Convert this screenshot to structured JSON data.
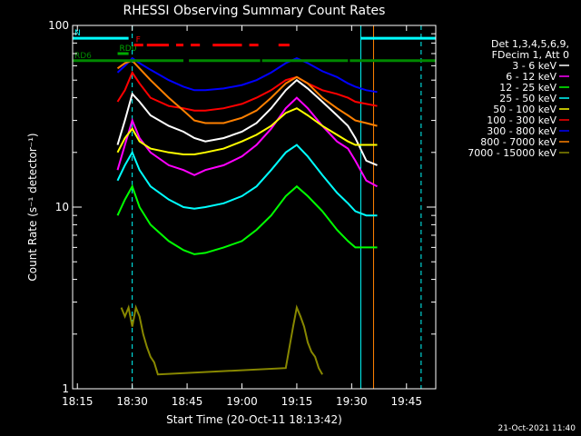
{
  "chart_data": {
    "type": "line",
    "title": "RHESSI Observing Summary Count Rates",
    "xlabel": "Start Time (20-Oct-11 18:13:42)",
    "ylabel": "Count Rate (s⁻¹ detector⁻¹)",
    "y_scale": "log",
    "xlim": [
      "18:13:42",
      "19:53:00"
    ],
    "ylim": [
      1,
      100
    ],
    "x_ticks": [
      "18:15",
      "18:30",
      "18:45",
      "19:00",
      "19:15",
      "19:30",
      "19:45"
    ],
    "y_ticks": [
      "1",
      "10",
      "100"
    ],
    "legend_header": [
      "Det 1,3,4,5,6,9,",
      "FDecim 1, Att 0"
    ],
    "legend_position": "right",
    "series": [
      {
        "name": "3 - 6 keV",
        "color": "#ffffff",
        "x": [
          "18:26",
          "18:28",
          "18:30",
          "18:32",
          "18:35",
          "18:40",
          "18:44",
          "18:47",
          "18:50",
          "18:55",
          "19:00",
          "19:04",
          "19:08",
          "19:12",
          "19:15",
          "19:18",
          "19:22",
          "19:26",
          "19:29",
          "19:31",
          "19:34",
          "19:37"
        ],
        "y": [
          22,
          30,
          42,
          38,
          32,
          28,
          26,
          24,
          23,
          24,
          26,
          29,
          35,
          44,
          50,
          45,
          38,
          32,
          28,
          24,
          18,
          17
        ]
      },
      {
        "name": "6 - 12 keV",
        "color": "#ff00ff",
        "x": [
          "18:26",
          "18:28",
          "18:30",
          "18:32",
          "18:35",
          "18:40",
          "18:44",
          "18:47",
          "18:50",
          "18:55",
          "19:00",
          "19:04",
          "19:08",
          "19:12",
          "19:15",
          "19:18",
          "19:22",
          "19:26",
          "19:29",
          "19:31",
          "19:34",
          "19:37"
        ],
        "y": [
          16,
          22,
          30,
          24,
          20,
          17,
          16,
          15,
          16,
          17,
          19,
          22,
          27,
          35,
          40,
          35,
          28,
          23,
          21,
          18,
          14,
          13
        ]
      },
      {
        "name": "12 - 25 keV",
        "color": "#00ff00",
        "x": [
          "18:26",
          "18:28",
          "18:30",
          "18:32",
          "18:35",
          "18:40",
          "18:44",
          "18:47",
          "18:50",
          "18:55",
          "19:00",
          "19:04",
          "19:08",
          "19:12",
          "19:15",
          "19:18",
          "19:22",
          "19:26",
          "19:29",
          "19:31",
          "19:34",
          "19:37"
        ],
        "y": [
          9,
          11,
          13,
          10,
          8,
          6.5,
          5.8,
          5.5,
          5.6,
          6,
          6.5,
          7.5,
          9,
          11.5,
          13,
          11.5,
          9.5,
          7.5,
          6.5,
          6,
          6,
          6
        ]
      },
      {
        "name": "25 - 50 keV",
        "color": "#00ffff",
        "x": [
          "18:26",
          "18:28",
          "18:30",
          "18:32",
          "18:35",
          "18:40",
          "18:44",
          "18:47",
          "18:50",
          "18:55",
          "19:00",
          "19:04",
          "19:08",
          "19:12",
          "19:15",
          "19:18",
          "19:22",
          "19:26",
          "19:29",
          "19:31",
          "19:34",
          "19:37"
        ],
        "y": [
          14,
          17,
          20,
          16,
          13,
          11,
          10,
          9.8,
          10,
          10.5,
          11.5,
          13,
          16,
          20,
          22,
          19,
          15,
          12,
          10.5,
          9.5,
          9,
          9
        ]
      },
      {
        "name": "50 - 100 keV",
        "color": "#ffff00",
        "x": [
          "18:26",
          "18:28",
          "18:30",
          "18:32",
          "18:35",
          "18:40",
          "18:44",
          "18:47",
          "18:50",
          "18:55",
          "19:00",
          "19:04",
          "19:08",
          "19:12",
          "19:15",
          "19:18",
          "19:22",
          "19:26",
          "19:29",
          "19:31",
          "19:34",
          "19:37"
        ],
        "y": [
          20,
          24,
          27,
          23,
          21,
          20,
          19.5,
          19.5,
          20,
          21,
          23,
          25,
          28,
          33,
          35,
          32,
          28,
          25,
          23,
          22,
          22,
          22
        ]
      },
      {
        "name": "100 - 300 keV",
        "color": "#ff0000",
        "x": [
          "18:26",
          "18:28",
          "18:30",
          "18:32",
          "18:35",
          "18:40",
          "18:44",
          "18:47",
          "18:50",
          "18:55",
          "19:00",
          "19:04",
          "19:08",
          "19:12",
          "19:15",
          "19:18",
          "19:22",
          "19:26",
          "19:29",
          "19:31",
          "19:34",
          "19:37"
        ],
        "y": [
          38,
          44,
          55,
          48,
          40,
          36,
          35,
          34,
          34,
          35,
          37,
          40,
          44,
          50,
          52,
          48,
          44,
          42,
          40,
          38,
          37,
          36
        ]
      },
      {
        "name": "300 - 800 keV",
        "color": "#0000ff",
        "x": [
          "18:26",
          "18:28",
          "18:30",
          "18:32",
          "18:35",
          "18:40",
          "18:44",
          "18:47",
          "18:50",
          "18:55",
          "19:00",
          "19:04",
          "19:08",
          "19:12",
          "19:15",
          "19:18",
          "19:22",
          "19:26",
          "19:29",
          "19:31",
          "19:34",
          "19:37"
        ],
        "y": [
          55,
          60,
          66,
          62,
          57,
          50,
          46,
          44,
          44,
          45,
          47,
          50,
          55,
          62,
          66,
          62,
          56,
          52,
          48,
          46,
          44,
          43
        ]
      },
      {
        "name": "800 - 7000 keV",
        "color": "#ff8000",
        "x": [
          "18:26",
          "18:28",
          "18:30",
          "18:32",
          "18:35",
          "18:40",
          "18:44",
          "18:47",
          "18:50",
          "18:55",
          "19:00",
          "19:04",
          "19:08",
          "19:12",
          "19:15",
          "19:18",
          "19:22",
          "19:26",
          "19:29",
          "19:31",
          "19:34",
          "19:37"
        ],
        "y": [
          58,
          62,
          64,
          58,
          50,
          40,
          34,
          30,
          29,
          29,
          31,
          34,
          40,
          48,
          52,
          48,
          40,
          35,
          32,
          30,
          29,
          28
        ]
      },
      {
        "name": "7000 - 15000 keV",
        "color": "#888800",
        "x": [
          "18:27",
          "18:28",
          "18:29",
          "18:30",
          "18:31",
          "18:32",
          "18:33",
          "18:34",
          "18:35",
          "18:36",
          "18:37",
          "19:12",
          "19:13",
          "19:14",
          "19:15",
          "19:16",
          "19:17",
          "19:18",
          "19:19",
          "19:20",
          "19:21",
          "19:22"
        ],
        "y": [
          2.8,
          2.5,
          2.8,
          2.2,
          2.8,
          2.5,
          2.0,
          1.7,
          1.5,
          1.4,
          1.2,
          1.3,
          1.7,
          2.2,
          2.8,
          2.5,
          2.2,
          1.8,
          1.6,
          1.5,
          1.3,
          1.2
        ]
      }
    ],
    "bars": [
      {
        "label": "N",
        "color": "#00ffff",
        "y": 85,
        "segments": [
          [
            "18:13:42",
            "18:29:00"
          ],
          [
            "19:32:30",
            "19:53:00"
          ]
        ]
      },
      {
        "label": "RD0",
        "color": "#00aa00",
        "y": 70,
        "segments": [
          [
            "18:26:00",
            "18:29:00"
          ]
        ]
      },
      {
        "label": "RD6",
        "color": "#008800",
        "y": 64,
        "segments": [
          [
            "18:13:42",
            "18:44:00"
          ],
          [
            "18:45:30",
            "19:05:00"
          ],
          [
            "19:05:30",
            "19:29:00"
          ],
          [
            "19:29:30",
            "19:53:00"
          ]
        ]
      },
      {
        "label": "F",
        "color": "#ff0000",
        "y": 78,
        "segments": [
          [
            "18:30:30",
            "18:33:00"
          ],
          [
            "18:34:00",
            "18:40:00"
          ],
          [
            "18:42:00",
            "18:44:00"
          ],
          [
            "18:46:00",
            "18:48:30"
          ],
          [
            "18:52:00",
            "19:00:00"
          ],
          [
            "19:02:00",
            "19:04:30"
          ],
          [
            "19:10:00",
            "19:13:00"
          ]
        ]
      }
    ],
    "vertical_lines": [
      {
        "x": "18:30:00",
        "color": "#00ffff",
        "style": "dashed"
      },
      {
        "x": "19:49:00",
        "color": "#00ffff",
        "style": "dashed"
      },
      {
        "x": "19:32:30",
        "color": "#00ffff",
        "style": "solid"
      },
      {
        "x": "19:36:00",
        "color": "#ff8000",
        "style": "solid"
      }
    ],
    "timestamp": "21-Oct-2021 11:40"
  }
}
